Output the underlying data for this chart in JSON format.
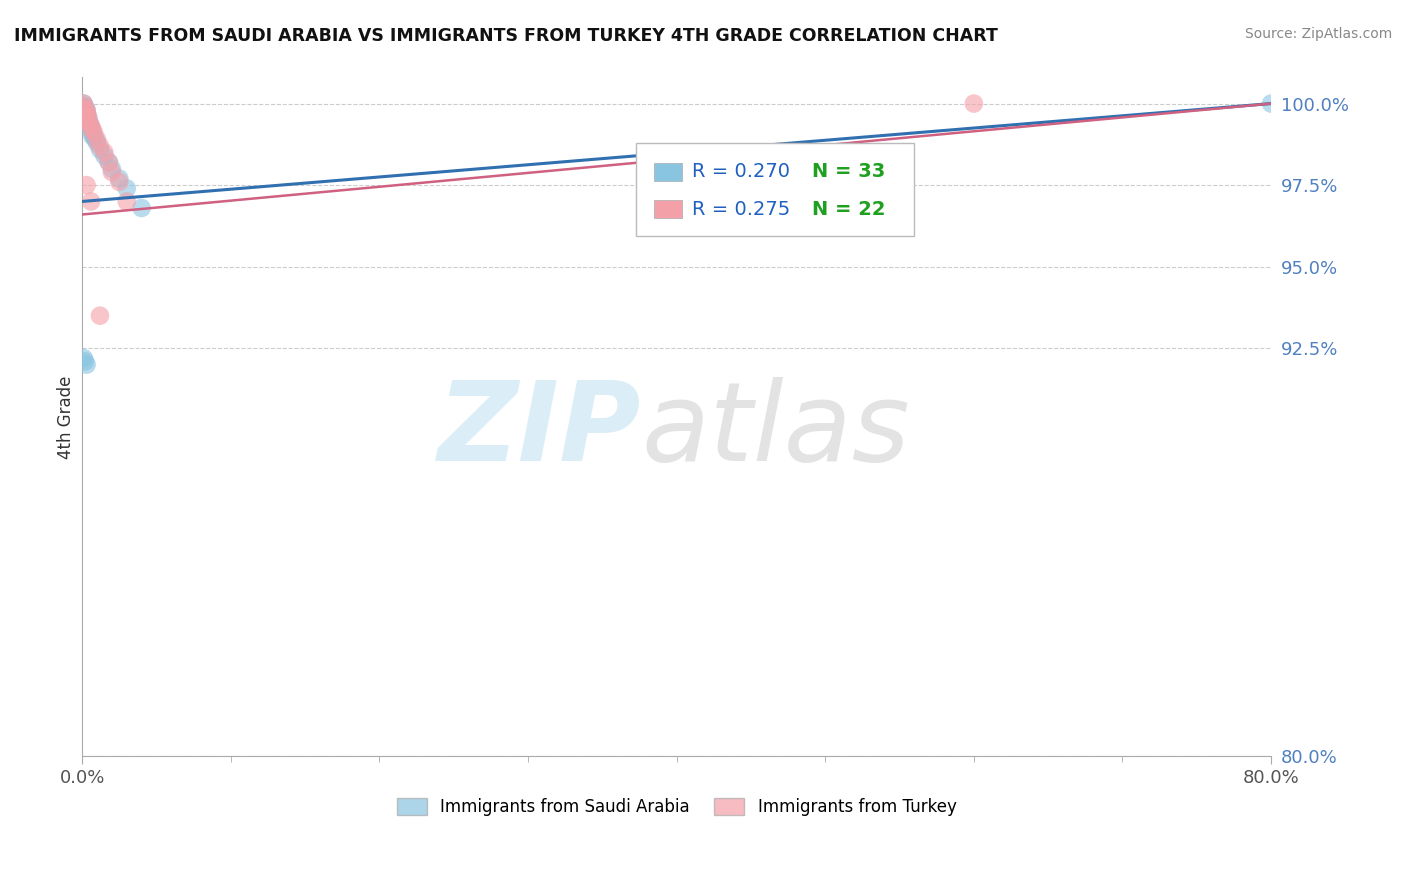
{
  "title": "IMMIGRANTS FROM SAUDI ARABIA VS IMMIGRANTS FROM TURKEY 4TH GRADE CORRELATION CHART",
  "source": "Source: ZipAtlas.com",
  "ylabel": "4th Grade",
  "xmin": 0.0,
  "xmax": 0.8,
  "ymin": 0.8,
  "ymax": 1.008,
  "series1_name": "Immigrants from Saudi Arabia",
  "series1_color": "#89c4e1",
  "series1_R": 0.27,
  "series1_N": 33,
  "series2_name": "Immigrants from Turkey",
  "series2_color": "#f4a0a8",
  "series2_R": 0.275,
  "series2_N": 22,
  "trend1_color": "#3070b0",
  "trend2_color": "#d06080",
  "legend_R_color": "#2060c0",
  "legend_N_color": "#20a020",
  "ytick_positions": [
    1.0,
    0.975,
    0.95,
    0.925,
    0.8
  ],
  "ytick_labels": [
    "100.0%",
    "97.5%",
    "95.0%",
    "92.5%",
    "80.0%"
  ],
  "ytick_color": "#5080c0",
  "sa_x": [
    0.001,
    0.001,
    0.001,
    0.002,
    0.002,
    0.002,
    0.003,
    0.003,
    0.003,
    0.003,
    0.004,
    0.004,
    0.004,
    0.005,
    0.005,
    0.006,
    0.006,
    0.007,
    0.007,
    0.008,
    0.009,
    0.01,
    0.012,
    0.015,
    0.018,
    0.02,
    0.025,
    0.03,
    0.04,
    0.001,
    0.002,
    0.003,
    0.8
  ],
  "sa_y": [
    1.0,
    0.999,
    0.999,
    0.999,
    0.998,
    0.998,
    0.998,
    0.997,
    0.997,
    0.996,
    0.996,
    0.995,
    0.994,
    0.994,
    0.993,
    0.993,
    0.992,
    0.991,
    0.99,
    0.99,
    0.989,
    0.988,
    0.986,
    0.984,
    0.982,
    0.98,
    0.977,
    0.974,
    0.968,
    0.922,
    0.921,
    0.92,
    1.0
  ],
  "tr_x": [
    0.001,
    0.001,
    0.002,
    0.003,
    0.003,
    0.004,
    0.004,
    0.005,
    0.006,
    0.007,
    0.008,
    0.01,
    0.012,
    0.015,
    0.018,
    0.02,
    0.025,
    0.03,
    0.003,
    0.006,
    0.012,
    0.6
  ],
  "tr_y": [
    1.0,
    0.999,
    0.998,
    0.998,
    0.997,
    0.996,
    0.995,
    0.994,
    0.993,
    0.992,
    0.991,
    0.989,
    0.987,
    0.985,
    0.982,
    0.979,
    0.976,
    0.97,
    0.975,
    0.97,
    0.935,
    1.0
  ],
  "trend1_x0": 0.0,
  "trend1_y0": 0.97,
  "trend1_x1": 0.8,
  "trend1_y1": 1.0,
  "trend2_x0": 0.0,
  "trend2_y0": 0.966,
  "trend2_x1": 0.8,
  "trend2_y1": 1.0
}
